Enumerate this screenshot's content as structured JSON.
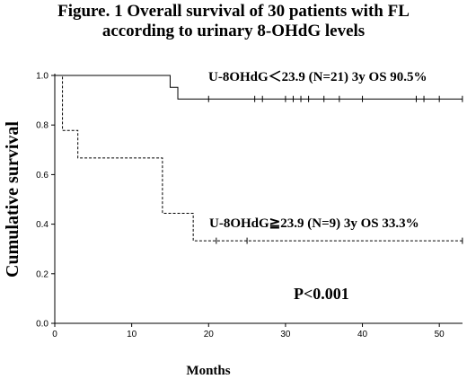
{
  "title_line1": "Figure. 1 Overall survival of 30 patients with FL",
  "title_line2": "according to urinary 8-OHdG levels",
  "chart_data": {
    "type": "line",
    "subtype": "kaplan-meier",
    "xlabel": "Months",
    "ylabel": "Cumulative survival",
    "xlim": [
      0,
      55
    ],
    "ylim": [
      0,
      1.0
    ],
    "x_ticks": [
      "0",
      "10",
      "20",
      "30",
      "40",
      "50"
    ],
    "y_ticks": [
      "0.0",
      "0.2",
      "0.4",
      "0.6",
      "0.8",
      "1.0"
    ],
    "grid": false,
    "series": [
      {
        "style": "solid",
        "steps": [
          [
            0,
            1.0
          ],
          [
            15,
            0.952
          ],
          [
            16,
            0.905
          ],
          [
            53,
            0.905
          ]
        ],
        "censor_x": [
          20,
          26,
          27,
          30,
          31,
          32,
          33,
          35,
          37,
          40,
          47,
          48,
          50,
          53
        ]
      },
      {
        "style": "dashed",
        "steps": [
          [
            0,
            1.0
          ],
          [
            1,
            0.778
          ],
          [
            3,
            0.667
          ],
          [
            14,
            0.444
          ],
          [
            18,
            0.333
          ],
          [
            53,
            0.333
          ]
        ],
        "censor_x": [
          21,
          25,
          53
        ]
      }
    ],
    "annotations": [
      "U-8OHdG＜23.9 (N=21)  3y OS 90.5%",
      "U-8OHdG≧23.9 (N=9)  3y OS 33.3%",
      "P<0.001"
    ]
  }
}
